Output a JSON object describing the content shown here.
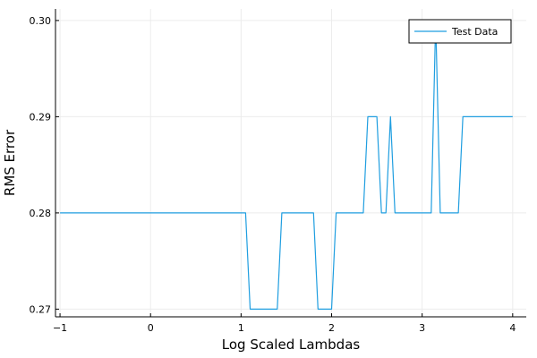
{
  "chart_data": {
    "type": "line",
    "title": "",
    "xlabel": "Log Scaled Lambdas",
    "ylabel": "RMS Error",
    "xlim": [
      -1.05,
      4.15
    ],
    "ylim": [
      0.2692,
      0.3012
    ],
    "xticks": [
      -1,
      0,
      1,
      2,
      3,
      4
    ],
    "xtick_labels": [
      "−1",
      "0",
      "1",
      "2",
      "3",
      "4"
    ],
    "yticks": [
      0.27,
      0.28,
      0.29,
      0.3
    ],
    "ytick_labels": [
      "0.27",
      "0.28",
      "0.29",
      "0.30"
    ],
    "grid": true,
    "legend_position": "top-right",
    "colors": {
      "series": "#1f9ee0",
      "grid": "#ececec",
      "axis": "#000000"
    },
    "series": [
      {
        "name": "Test Data",
        "x": [
          -1.0,
          1.05,
          1.1,
          1.4,
          1.45,
          1.8,
          1.85,
          2.0,
          2.05,
          2.35,
          2.4,
          2.5,
          2.55,
          2.6,
          2.65,
          2.7,
          2.75,
          3.1,
          3.15,
          3.2,
          3.25,
          3.4,
          3.45,
          4.0
        ],
        "y": [
          0.28,
          0.28,
          0.27,
          0.27,
          0.28,
          0.28,
          0.27,
          0.27,
          0.28,
          0.28,
          0.29,
          0.29,
          0.28,
          0.28,
          0.29,
          0.28,
          0.28,
          0.28,
          0.3,
          0.28,
          0.28,
          0.28,
          0.29,
          0.29
        ]
      }
    ]
  }
}
